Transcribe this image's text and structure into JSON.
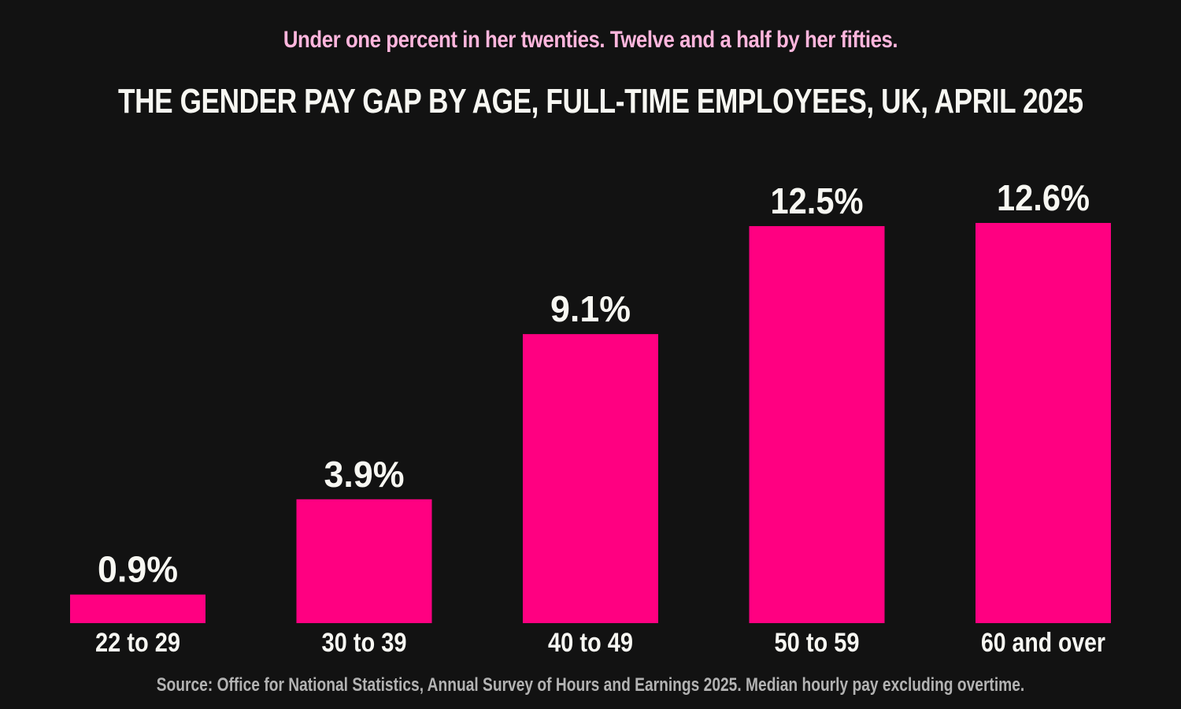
{
  "header": {
    "subtitle": "Under one percent in her twenties. Twelve and a half by her fifties.",
    "title": "THE GENDER PAY GAP BY AGE, FULL-TIME EMPLOYEES, UK, APRIL 2025"
  },
  "footer": {
    "source": "Source: Office for National Statistics, Annual Survey of Hours and Earnings 2025. Median hourly pay excluding overtime."
  },
  "colors": {
    "background": "#121212",
    "bar": "#ff0081",
    "subtitle": "#ffb6dd",
    "text": "#f7f7f2",
    "source": "#b3b3b3"
  },
  "chart_data": {
    "type": "bar",
    "title": "THE GENDER PAY GAP BY AGE, FULL-TIME EMPLOYEES, UK, APRIL 2025",
    "subtitle": "Under one percent in her twenties. Twelve and a half by her fifties.",
    "categories": [
      "22 to 29",
      "30 to 39",
      "40 to 49",
      "50 to 59",
      "60 and over"
    ],
    "values": [
      0.9,
      3.9,
      9.1,
      12.5,
      12.6
    ],
    "value_labels": [
      "0.9%",
      "3.9%",
      "9.1%",
      "12.5%",
      "12.6%"
    ],
    "ylim": [
      0,
      12.6
    ],
    "grid": false,
    "legend": "none"
  }
}
